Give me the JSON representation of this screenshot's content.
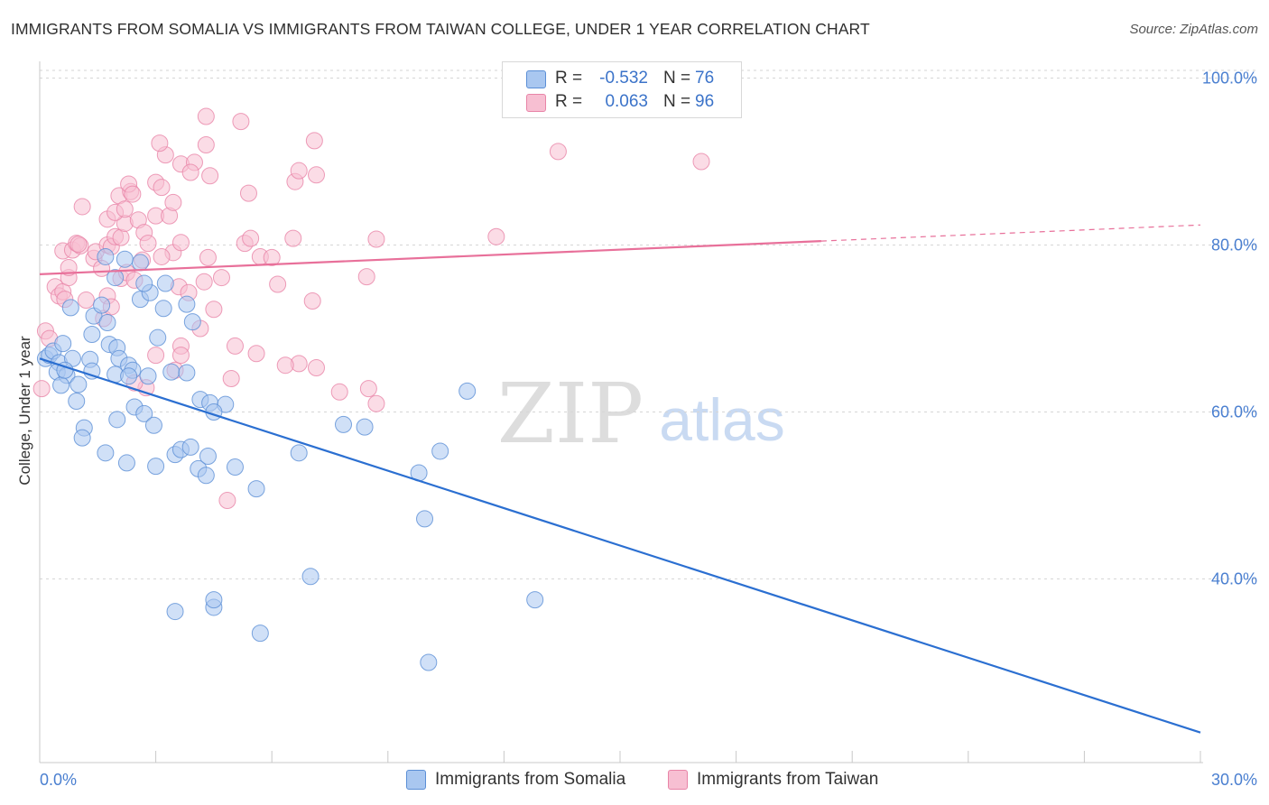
{
  "title": "IMMIGRANTS FROM SOMALIA VS IMMIGRANTS FROM TAIWAN COLLEGE, UNDER 1 YEAR CORRELATION CHART",
  "source": "Source: ZipAtlas.com",
  "watermark": {
    "zip": "ZIP",
    "atlas": "atlas"
  },
  "colors": {
    "somalia_fill": "#a9c7f0",
    "somalia_stroke": "#5b8fd6",
    "somalia_line": "#2b6fd1",
    "taiwan_fill": "#f7bfd2",
    "taiwan_stroke": "#e884a7",
    "taiwan_line": "#e8709a",
    "tick_text": "#4a7fd0",
    "grid": "#d6d6d6"
  },
  "legend": {
    "rows": [
      {
        "r_label": "R =",
        "r_value": "-0.532",
        "n_label": "N =",
        "n_value": "76"
      },
      {
        "r_label": "R =",
        "r_value": "0.063",
        "n_label": "N =",
        "n_value": "96"
      }
    ]
  },
  "bottom_legend": {
    "somalia": "Immigrants from Somalia",
    "taiwan": "Immigrants from Taiwan"
  },
  "chart_data": {
    "type": "scatter",
    "title": "IMMIGRANTS FROM SOMALIA VS IMMIGRANTS FROM TAIWAN COLLEGE, UNDER 1 YEAR CORRELATION CHART",
    "xlabel": "",
    "ylabel": "College, Under 1 year",
    "xlim": [
      0,
      30
    ],
    "ylim": [
      18,
      102
    ],
    "x_tick_labels": [
      "0.0%",
      "30.0%"
    ],
    "y_ticks": [
      40,
      60,
      80,
      100
    ],
    "y_tick_labels": [
      "40.0%",
      "60.0%",
      "80.0%",
      "100.0%"
    ],
    "grid": "horizontal dashed",
    "legend_position": "top-center",
    "series": [
      {
        "name": "Immigrants from Somalia",
        "r": -0.532,
        "n": 76,
        "trend": {
          "x": [
            0,
            30
          ],
          "y": [
            66.4,
            21.6
          ],
          "dashed_from": null
        },
        "points": [
          [
            0.15,
            66.4
          ],
          [
            0.25,
            66.8
          ],
          [
            0.35,
            67.3
          ],
          [
            0.5,
            65.9
          ],
          [
            0.45,
            64.8
          ],
          [
            0.7,
            64.4
          ],
          [
            0.6,
            68.2
          ],
          [
            0.85,
            66.4
          ],
          [
            0.55,
            63.2
          ],
          [
            0.65,
            65.0
          ],
          [
            1.0,
            63.3
          ],
          [
            1.3,
            66.3
          ],
          [
            1.35,
            64.9
          ],
          [
            1.35,
            69.3
          ],
          [
            1.4,
            71.5
          ],
          [
            1.75,
            70.7
          ],
          [
            0.95,
            61.3
          ],
          [
            0.8,
            72.5
          ],
          [
            1.6,
            72.8
          ],
          [
            1.8,
            68.1
          ],
          [
            2.0,
            67.7
          ],
          [
            2.05,
            66.4
          ],
          [
            2.3,
            65.6
          ],
          [
            2.4,
            65.0
          ],
          [
            1.95,
            64.5
          ],
          [
            2.3,
            64.3
          ],
          [
            2.8,
            64.3
          ],
          [
            3.05,
            68.9
          ],
          [
            2.6,
            73.5
          ],
          [
            2.85,
            74.3
          ],
          [
            2.7,
            75.4
          ],
          [
            2.6,
            77.9
          ],
          [
            1.7,
            78.6
          ],
          [
            2.2,
            78.3
          ],
          [
            1.95,
            76.1
          ],
          [
            3.25,
            75.4
          ],
          [
            3.2,
            72.4
          ],
          [
            3.8,
            72.9
          ],
          [
            3.95,
            70.8
          ],
          [
            3.4,
            64.8
          ],
          [
            3.8,
            64.7
          ],
          [
            4.15,
            61.5
          ],
          [
            4.4,
            61.1
          ],
          [
            4.8,
            60.9
          ],
          [
            2.45,
            60.6
          ],
          [
            2.7,
            59.8
          ],
          [
            2.95,
            58.4
          ],
          [
            4.5,
            60.0
          ],
          [
            2.0,
            59.1
          ],
          [
            1.15,
            58.1
          ],
          [
            1.1,
            56.9
          ],
          [
            1.7,
            55.1
          ],
          [
            2.25,
            53.9
          ],
          [
            3.0,
            53.5
          ],
          [
            3.5,
            54.9
          ],
          [
            3.65,
            55.5
          ],
          [
            3.9,
            55.8
          ],
          [
            4.1,
            53.2
          ],
          [
            4.35,
            54.7
          ],
          [
            4.3,
            52.4
          ],
          [
            5.05,
            53.4
          ],
          [
            5.6,
            50.8
          ],
          [
            6.7,
            55.1
          ],
          [
            7.85,
            58.5
          ],
          [
            8.4,
            58.2
          ],
          [
            9.8,
            52.7
          ],
          [
            10.35,
            55.3
          ],
          [
            11.05,
            62.5
          ],
          [
            9.95,
            47.2
          ],
          [
            12.8,
            37.5
          ],
          [
            10.05,
            30.0
          ],
          [
            7.0,
            40.3
          ],
          [
            5.7,
            33.5
          ],
          [
            4.5,
            36.6
          ],
          [
            4.5,
            37.5
          ],
          [
            3.5,
            36.1
          ]
        ]
      },
      {
        "name": "Immigrants from Taiwan",
        "r": 0.063,
        "n": 96,
        "trend": {
          "x": [
            0,
            30
          ],
          "y": [
            76.5,
            82.4
          ],
          "dashed_from": 20.2
        },
        "points": [
          [
            0.05,
            62.8
          ],
          [
            0.15,
            69.7
          ],
          [
            0.25,
            68.8
          ],
          [
            0.4,
            75.0
          ],
          [
            0.5,
            73.9
          ],
          [
            0.6,
            74.4
          ],
          [
            0.65,
            73.5
          ],
          [
            0.6,
            79.3
          ],
          [
            0.75,
            76.1
          ],
          [
            0.75,
            77.3
          ],
          [
            0.85,
            79.4
          ],
          [
            0.95,
            80.2
          ],
          [
            1.05,
            79.9
          ],
          [
            1.0,
            80.1
          ],
          [
            1.1,
            84.6
          ],
          [
            1.4,
            78.4
          ],
          [
            1.45,
            79.2
          ],
          [
            1.6,
            77.2
          ],
          [
            1.75,
            80.0
          ],
          [
            1.85,
            79.8
          ],
          [
            1.95,
            81.0
          ],
          [
            2.1,
            80.9
          ],
          [
            2.2,
            82.6
          ],
          [
            1.75,
            83.1
          ],
          [
            1.95,
            83.9
          ],
          [
            2.05,
            85.9
          ],
          [
            2.2,
            84.3
          ],
          [
            2.35,
            86.4
          ],
          [
            2.3,
            87.3
          ],
          [
            2.4,
            86.1
          ],
          [
            2.55,
            83.0
          ],
          [
            2.7,
            81.5
          ],
          [
            2.8,
            80.2
          ],
          [
            3.0,
            83.5
          ],
          [
            3.0,
            87.5
          ],
          [
            3.15,
            86.9
          ],
          [
            3.25,
            90.8
          ],
          [
            3.1,
            92.2
          ],
          [
            3.35,
            83.5
          ],
          [
            3.45,
            79.1
          ],
          [
            3.65,
            80.3
          ],
          [
            3.45,
            85.1
          ],
          [
            3.15,
            78.6
          ],
          [
            3.6,
            75.0
          ],
          [
            3.85,
            74.3
          ],
          [
            4.25,
            75.6
          ],
          [
            4.35,
            78.5
          ],
          [
            4.7,
            76.1
          ],
          [
            4.5,
            72.3
          ],
          [
            4.15,
            70.0
          ],
          [
            3.65,
            67.9
          ],
          [
            3.5,
            65.0
          ],
          [
            3.65,
            66.8
          ],
          [
            3.0,
            66.8
          ],
          [
            2.75,
            62.9
          ],
          [
            2.45,
            63.5
          ],
          [
            1.65,
            71.2
          ],
          [
            1.2,
            73.4
          ],
          [
            1.75,
            73.9
          ],
          [
            1.85,
            72.6
          ],
          [
            2.1,
            76.0
          ],
          [
            2.25,
            76.7
          ],
          [
            2.45,
            75.8
          ],
          [
            2.65,
            78.2
          ],
          [
            3.65,
            89.7
          ],
          [
            4.0,
            89.9
          ],
          [
            4.3,
            92.0
          ],
          [
            4.3,
            95.4
          ],
          [
            4.4,
            88.3
          ],
          [
            3.9,
            88.7
          ],
          [
            5.3,
            80.2
          ],
          [
            5.7,
            78.6
          ],
          [
            5.4,
            86.2
          ],
          [
            5.45,
            80.8
          ],
          [
            6.0,
            78.5
          ],
          [
            6.15,
            75.3
          ],
          [
            6.55,
            80.8
          ],
          [
            6.6,
            87.6
          ],
          [
            6.7,
            88.9
          ],
          [
            7.1,
            92.5
          ],
          [
            7.15,
            88.4
          ],
          [
            7.05,
            73.3
          ],
          [
            7.15,
            65.3
          ],
          [
            6.7,
            65.8
          ],
          [
            6.35,
            65.6
          ],
          [
            5.6,
            67.0
          ],
          [
            5.05,
            67.9
          ],
          [
            4.95,
            64.0
          ],
          [
            4.85,
            49.4
          ],
          [
            7.75,
            62.4
          ],
          [
            8.5,
            62.8
          ],
          [
            8.7,
            61.0
          ],
          [
            8.45,
            76.2
          ],
          [
            8.7,
            80.7
          ],
          [
            11.8,
            81.0
          ],
          [
            13.4,
            91.2
          ],
          [
            17.1,
            90.0
          ],
          [
            5.2,
            94.8
          ]
        ]
      }
    ]
  }
}
